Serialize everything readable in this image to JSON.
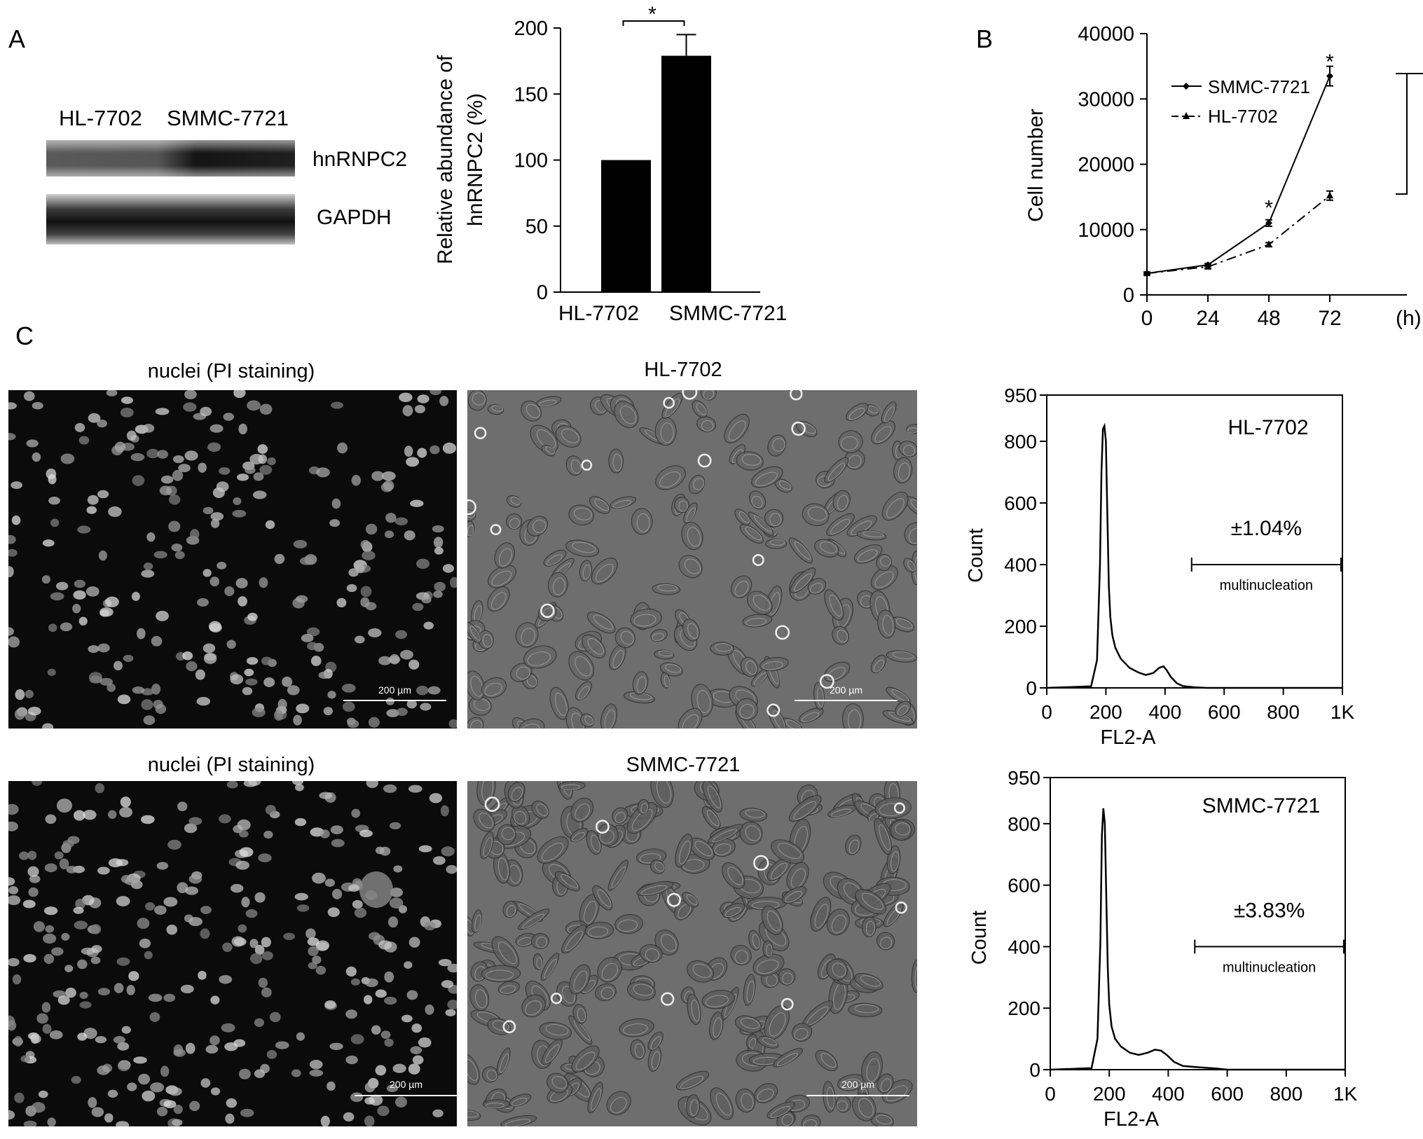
{
  "panel_labels": {
    "a": "A",
    "b": "B",
    "c": "C"
  },
  "western": {
    "lane_labels": [
      "HL-7702",
      "SMMC-7721"
    ],
    "band_labels": [
      "hnRNPC2",
      "GAPDH"
    ]
  },
  "micrographs": {
    "titles": [
      "nuclei (PI staining)",
      "HL-7702",
      "nuclei (PI staining)",
      "SMMC-7721"
    ],
    "scale_label": "200 µm"
  },
  "chart_data": [
    {
      "type": "bar",
      "title": "",
      "categories": [
        "HL-7702",
        "SMMC-7721"
      ],
      "values": [
        100,
        179
      ],
      "error_plus": [
        0,
        16
      ],
      "ylabel_lines": [
        "Relative abundance of",
        "hnRNPC2 (%)"
      ],
      "ylim": [
        0,
        200
      ],
      "yticks": [
        0,
        50,
        100,
        150,
        200
      ],
      "significance": "*",
      "grid": false
    },
    {
      "type": "line",
      "title": "",
      "x": [
        0,
        24,
        48,
        72
      ],
      "xticks": [
        "0",
        "24",
        "48",
        "72"
      ],
      "xunit": "(h)",
      "ylabel": "Cell number",
      "ylim": [
        0,
        40000
      ],
      "yticks": [
        0,
        10000,
        20000,
        30000,
        40000
      ],
      "series": [
        {
          "name": "SMMC-7721",
          "values": [
            3300,
            4600,
            11000,
            33500
          ],
          "errors": [
            200,
            200,
            500,
            1500
          ],
          "style": "solid",
          "marker": "diamond"
        },
        {
          "name": "HL-7702",
          "values": [
            3300,
            4300,
            7700,
            15200
          ],
          "errors": [
            200,
            200,
            300,
            700
          ],
          "style": "dashdot",
          "marker": "triangle"
        }
      ],
      "star_labels": [
        "*",
        "*"
      ],
      "legend": "top-left",
      "grid": false
    },
    {
      "type": "area",
      "title": "",
      "label": "HL-7702",
      "xlabel": "FL2-A",
      "ylabel": "Count",
      "xlim": [
        0,
        1000
      ],
      "ylim": [
        0,
        950
      ],
      "xticks": [
        "0",
        "200",
        "400",
        "600",
        "800",
        "1K"
      ],
      "yticks": [
        "0",
        "200",
        "400",
        "600",
        "800",
        "950"
      ],
      "x": [
        0,
        150,
        170,
        180,
        185,
        190,
        195,
        200,
        205,
        210,
        215,
        222,
        232,
        250,
        280,
        310,
        335,
        360,
        380,
        395,
        405,
        420,
        440,
        460,
        500,
        540,
        600,
        1000
      ],
      "values": [
        0,
        5,
        90,
        400,
        700,
        840,
        850,
        800,
        560,
        330,
        230,
        170,
        130,
        95,
        65,
        50,
        42,
        48,
        65,
        70,
        58,
        35,
        15,
        6,
        2,
        0,
        0,
        0
      ],
      "percent": "±1.04%",
      "gate_label": "multinucleation",
      "gate_range": [
        490,
        1000
      ],
      "grid": false
    },
    {
      "type": "area",
      "title": "",
      "label": "SMMC-7721",
      "xlabel": "FL2-A",
      "ylabel": "Count",
      "xlim": [
        0,
        1000
      ],
      "ylim": [
        0,
        950
      ],
      "xticks": [
        "0",
        "200",
        "400",
        "600",
        "800",
        "1K"
      ],
      "yticks": [
        "0",
        "200",
        "400",
        "600",
        "800",
        "950"
      ],
      "x": [
        0,
        140,
        160,
        170,
        175,
        180,
        185,
        190,
        195,
        200,
        208,
        220,
        240,
        270,
        300,
        330,
        355,
        375,
        395,
        420,
        450,
        500,
        560,
        600,
        1000
      ],
      "values": [
        0,
        5,
        100,
        420,
        760,
        850,
        800,
        560,
        330,
        210,
        140,
        100,
        75,
        55,
        48,
        55,
        65,
        62,
        48,
        25,
        12,
        8,
        4,
        0,
        0
      ],
      "percent": "±3.83%",
      "gate_label": "multinucleation",
      "gate_range": [
        490,
        1000
      ],
      "grid": false
    }
  ]
}
